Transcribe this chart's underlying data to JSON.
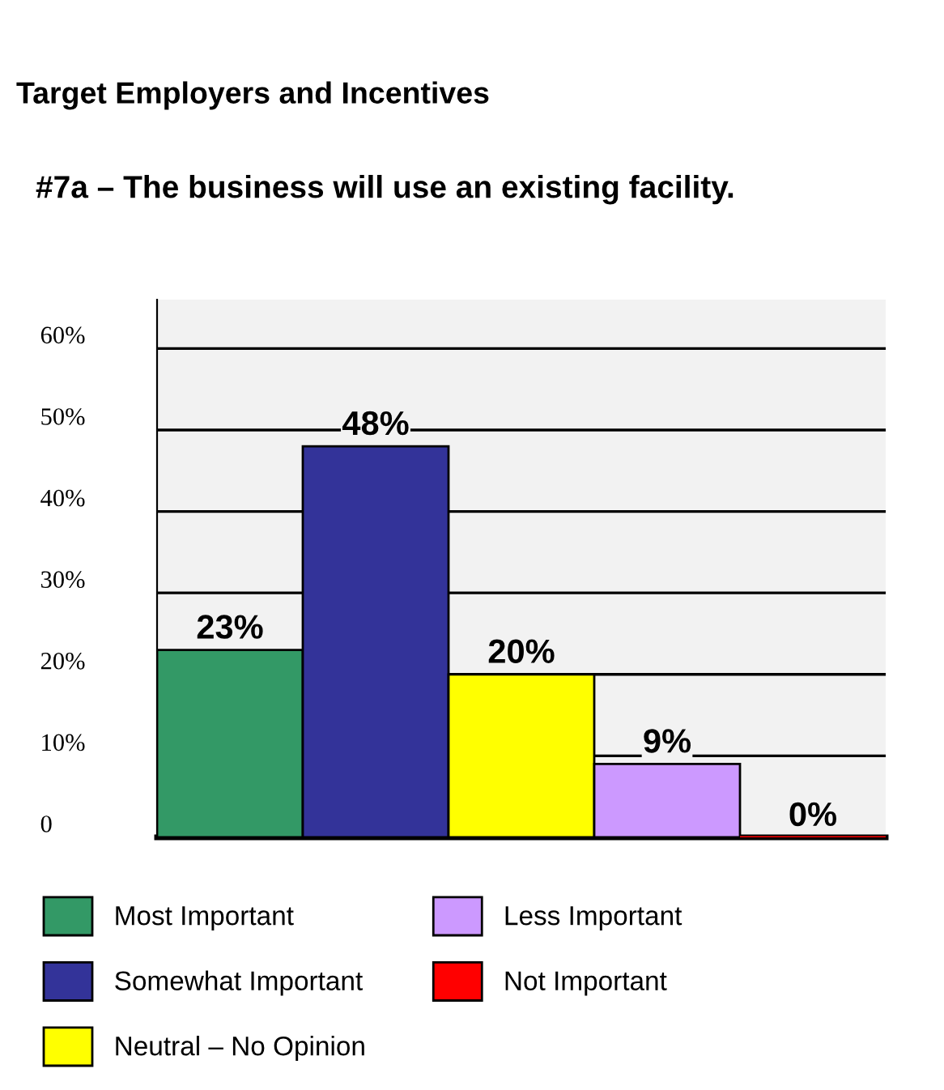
{
  "chart_data": {
    "type": "bar",
    "title": "Target Employers and Incentives",
    "subtitle": "#7a – The business will use an existing facility.",
    "categories": [
      null,
      null,
      null,
      null,
      null
    ],
    "series": [
      {
        "name": "Most Important",
        "color": "#339966",
        "values": [
          23,
          null,
          null,
          null,
          null
        ],
        "value_labels": [
          "23%",
          null,
          null,
          null,
          null
        ]
      },
      {
        "name": "Somewhat Important",
        "color": "#333399",
        "values": [
          null,
          48,
          null,
          null,
          null
        ],
        "value_labels": [
          null,
          "48%",
          null,
          null,
          null
        ]
      },
      {
        "name": "Neutral – No Opinion",
        "color": "#ffff00",
        "values": [
          null,
          null,
          20,
          null,
          null
        ],
        "value_labels": [
          null,
          null,
          "20%",
          null,
          null
        ]
      },
      {
        "name": "Less Important",
        "color": "#cc99ff",
        "values": [
          null,
          null,
          null,
          9,
          null
        ],
        "value_labels": [
          null,
          null,
          null,
          "9%",
          null
        ]
      },
      {
        "name": "Not Important",
        "color": "#ff0000",
        "values": [
          null,
          null,
          null,
          null,
          0
        ],
        "value_labels": [
          null,
          null,
          null,
          null,
          "0%"
        ]
      }
    ],
    "ylim": [
      0,
      66
    ],
    "yticks": [
      0,
      {
        "value": 10,
        "label": "10%"
      },
      {
        "value": 20,
        "label": "20%"
      },
      {
        "value": 30,
        "label": "30%"
      },
      {
        "value": 40,
        "label": "40%"
      },
      {
        "value": 50,
        "label": "50%"
      },
      {
        "value": 60,
        "label": "60%"
      }
    ],
    "grid": "y",
    "legend": "bottom",
    "tick_labels": "y"
  }
}
